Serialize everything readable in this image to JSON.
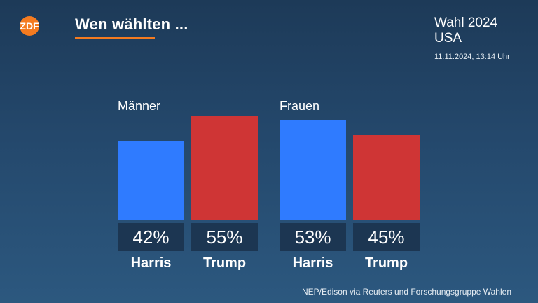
{
  "header": {
    "logo_text": "ZDF",
    "title": "Wen wählten ...",
    "right_line1": "Wahl 2024",
    "right_line2": "USA",
    "datetime": "11.11.2024, 13:14 Uhr"
  },
  "colors": {
    "harris": "#2f7bff",
    "trump": "#cf3535",
    "accent": "#f47b20",
    "label_box": "#1c3652"
  },
  "chart_data": {
    "type": "bar",
    "groups": [
      {
        "label": "Männer",
        "bars": [
          {
            "candidate": "Harris",
            "value": 42,
            "value_label": "42%"
          },
          {
            "candidate": "Trump",
            "value": 55,
            "value_label": "55%"
          }
        ]
      },
      {
        "label": "Frauen",
        "bars": [
          {
            "candidate": "Harris",
            "value": 53,
            "value_label": "53%"
          },
          {
            "candidate": "Trump",
            "value": 45,
            "value_label": "45%"
          }
        ]
      }
    ],
    "ylim": [
      0,
      55
    ]
  },
  "footer": {
    "source": "NEP/Edison via Reuters und Forschungsgruppe Wahlen"
  }
}
